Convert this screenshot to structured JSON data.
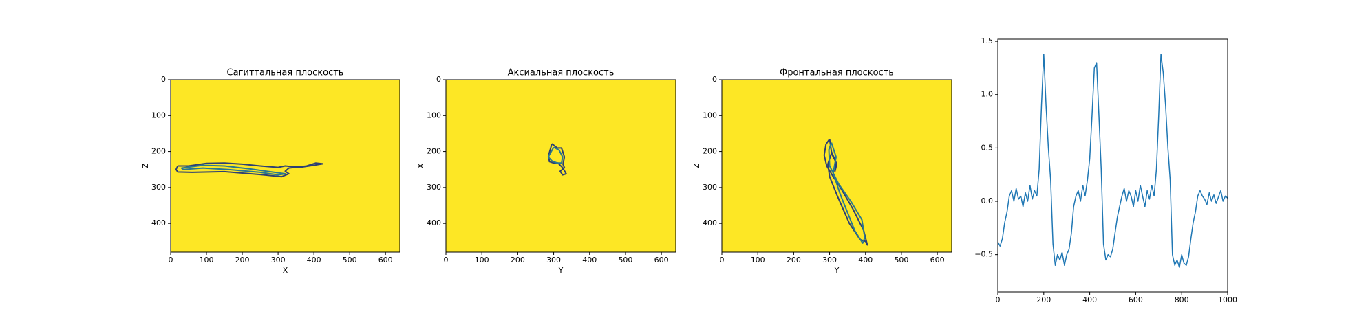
{
  "chart_data": [
    {
      "type": "contour",
      "title": "Сагиттальная плоскость",
      "xlabel": "X",
      "ylabel": "Z",
      "background": "#fde725",
      "xlim": [
        0,
        640
      ],
      "ylim": [
        480,
        0
      ],
      "xticks": [
        0,
        100,
        200,
        300,
        400,
        500,
        600
      ],
      "yticks": [
        0,
        100,
        200,
        300,
        400
      ],
      "series": [
        {
          "color": "#2d3f73",
          "x": [
            20,
            50,
            100,
            150,
            200,
            250,
            300,
            320,
            360,
            400,
            425,
            405,
            380,
            330,
            320,
            330,
            310,
            250,
            150,
            60,
            20,
            15,
            20
          ],
          "values": [
            240,
            240,
            233,
            232,
            235,
            240,
            244,
            240,
            244,
            238,
            234,
            232,
            240,
            246,
            255,
            262,
            270,
            264,
            256,
            258,
            257,
            250,
            240
          ]
        },
        {
          "color": "#2a788e",
          "x": [
            30,
            90,
            150,
            220,
            290,
            320,
            300,
            250,
            160,
            90,
            35,
            30
          ],
          "values": [
            246,
            238,
            240,
            248,
            258,
            262,
            265,
            258,
            250,
            246,
            250,
            246
          ]
        }
      ]
    },
    {
      "type": "contour",
      "title": "Аксиальная плоскость",
      "xlabel": "Y",
      "ylabel": "X",
      "background": "#fde725",
      "xlim": [
        0,
        640
      ],
      "ylim": [
        480,
        0
      ],
      "xticks": [
        0,
        100,
        200,
        300,
        400,
        500,
        600
      ],
      "yticks": [
        0,
        100,
        200,
        300,
        400
      ],
      "series": [
        {
          "color": "#2d3f73",
          "x": [
            295,
            310,
            322,
            330,
            326,
            330,
            318,
            325,
            335,
            325,
            312,
            300,
            288,
            286,
            295
          ],
          "values": [
            178,
            190,
            190,
            215,
            235,
            245,
            255,
            265,
            262,
            245,
            232,
            232,
            228,
            210,
            178
          ]
        },
        {
          "color": "#2a788e",
          "x": [
            300,
            315,
            325,
            322,
            310,
            295,
            285,
            300
          ],
          "values": [
            188,
            196,
            215,
            232,
            232,
            226,
            215,
            188
          ]
        }
      ]
    },
    {
      "type": "contour",
      "title": "Фронтальная плоскость",
      "xlabel": "Y",
      "ylabel": "Z",
      "background": "#fde725",
      "xlim": [
        0,
        640
      ],
      "ylim": [
        480,
        0
      ],
      "xticks": [
        0,
        100,
        200,
        300,
        400,
        500,
        600
      ],
      "yticks": [
        0,
        100,
        200,
        300,
        400
      ],
      "series": [
        {
          "color": "#2d3f73",
          "x": [
            300,
            290,
            285,
            292,
            310,
            330,
            365,
            395,
            405,
            400,
            385,
            355,
            320,
            300,
            295,
            305,
            318,
            315,
            320,
            305,
            300
          ],
          "values": [
            165,
            180,
            210,
            240,
            270,
            300,
            360,
            420,
            460,
            450,
            445,
            400,
            320,
            270,
            235,
            205,
            230,
            255,
            235,
            200,
            165
          ]
        },
        {
          "color": "#2a788e",
          "x": [
            305,
            298,
            300,
            325,
            360,
            390,
            398,
            392,
            370,
            330,
            310,
            318,
            305
          ],
          "values": [
            175,
            195,
            240,
            290,
            340,
            390,
            440,
            455,
            420,
            320,
            260,
            215,
            175
          ]
        }
      ]
    },
    {
      "type": "line",
      "xlim": [
        0,
        1000
      ],
      "ylim": [
        -0.85,
        1.52
      ],
      "xticks": [
        0,
        200,
        400,
        600,
        800,
        1000
      ],
      "yticks": [
        {
          "value": -0.5,
          "label": "−0.5"
        },
        {
          "value": 0,
          "label": "0.0"
        },
        0.5,
        {
          "value": 1,
          "label": "1.0"
        },
        {
          "value": 1.5,
          "label": "1.5"
        }
      ],
      "series": [
        {
          "color": "#1f77b4",
          "x": [
            0,
            10,
            20,
            30,
            40,
            50,
            60,
            70,
            80,
            90,
            100,
            110,
            120,
            130,
            140,
            150,
            160,
            170,
            180,
            190,
            200,
            210,
            220,
            230,
            240,
            250,
            260,
            270,
            280,
            290,
            300,
            310,
            320,
            330,
            340,
            350,
            360,
            370,
            380,
            390,
            400,
            410,
            420,
            430,
            440,
            450,
            460,
            470,
            480,
            490,
            500,
            510,
            520,
            530,
            540,
            550,
            560,
            570,
            580,
            590,
            600,
            610,
            620,
            630,
            640,
            650,
            660,
            670,
            680,
            690,
            700,
            710,
            720,
            730,
            740,
            750,
            760,
            770,
            780,
            790,
            800,
            810,
            820,
            830,
            840,
            850,
            860,
            870,
            880,
            890,
            900,
            910,
            920,
            930,
            940,
            950,
            960,
            970,
            980,
            990,
            1000
          ],
          "values": [
            -0.38,
            -0.42,
            -0.35,
            -0.2,
            -0.1,
            0.05,
            0.1,
            0.0,
            0.12,
            0.02,
            0.05,
            -0.05,
            0.08,
            0.0,
            0.15,
            0.02,
            0.1,
            0.05,
            0.3,
            0.9,
            1.38,
            0.9,
            0.5,
            0.2,
            -0.4,
            -0.6,
            -0.5,
            -0.55,
            -0.48,
            -0.6,
            -0.5,
            -0.45,
            -0.3,
            -0.05,
            0.05,
            0.1,
            0.0,
            0.15,
            0.05,
            0.2,
            0.4,
            0.8,
            1.25,
            1.3,
            0.8,
            0.3,
            -0.4,
            -0.55,
            -0.5,
            -0.52,
            -0.45,
            -0.3,
            -0.15,
            -0.05,
            0.05,
            0.12,
            0.0,
            0.1,
            0.05,
            -0.05,
            0.1,
            0.0,
            0.15,
            0.05,
            -0.05,
            0.1,
            0.02,
            0.15,
            0.05,
            0.3,
            0.8,
            1.38,
            1.2,
            0.9,
            0.5,
            0.2,
            -0.5,
            -0.6,
            -0.55,
            -0.62,
            -0.5,
            -0.58,
            -0.6,
            -0.52,
            -0.35,
            -0.2,
            -0.1,
            0.05,
            0.1,
            0.05,
            0.02,
            -0.03,
            0.08,
            0.0,
            0.06,
            -0.02,
            0.04,
            0.1,
            0.0,
            0.05,
            0.03
          ]
        }
      ]
    }
  ]
}
